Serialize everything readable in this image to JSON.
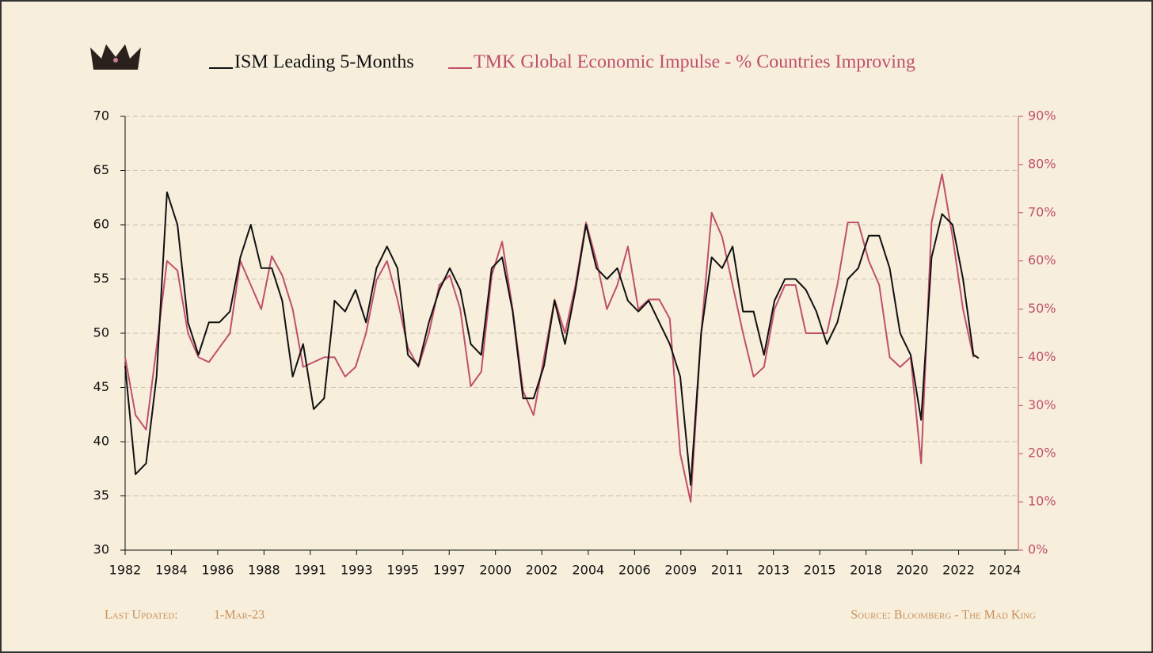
{
  "chart_data": {
    "type": "line",
    "series": [
      {
        "name": "ISM Leading 5-Months",
        "color": "#111111",
        "values": [
          47,
          37,
          38,
          46,
          63,
          60,
          51,
          48,
          51,
          51,
          52,
          57,
          60,
          56,
          56,
          53,
          46,
          49,
          43,
          44,
          53,
          52,
          54,
          51,
          56,
          58,
          56,
          48,
          47,
          51,
          54,
          56,
          54,
          49,
          48,
          56,
          57,
          52,
          44,
          44,
          47,
          53,
          49,
          54,
          60,
          56,
          55,
          56,
          53,
          52,
          53,
          51,
          49,
          46,
          36,
          50,
          57,
          56,
          58,
          52,
          52,
          48,
          53,
          55,
          55,
          54,
          52,
          49,
          51,
          55,
          56,
          59,
          59,
          56,
          50,
          48,
          42,
          57,
          61,
          60,
          55,
          48,
          47.7
        ]
      },
      {
        "name": "TMK Global Economic Impulse - % Countries Improving",
        "color": "#c0506a",
        "axis": "y2",
        "values": [
          40,
          28,
          25,
          42,
          60,
          58,
          45,
          40,
          39,
          42,
          45,
          60,
          55,
          50,
          61,
          57,
          50,
          38,
          39,
          40,
          40,
          36,
          38,
          45,
          56,
          60,
          52,
          42,
          38,
          45,
          55,
          57,
          50,
          34,
          37,
          57,
          64,
          50,
          33,
          28,
          40,
          52,
          45,
          55,
          68,
          60,
          50,
          55,
          63,
          50,
          52,
          52,
          48,
          20,
          10,
          45,
          70,
          65,
          55,
          45,
          36,
          38,
          50,
          55,
          55,
          45,
          45,
          45,
          55,
          68,
          68,
          60,
          55,
          40,
          38,
          40,
          18,
          68,
          78,
          65,
          50,
          40,
          null
        ]
      }
    ],
    "x": [
      1982,
      1982.5,
      1983,
      1983.5,
      1984,
      1984.5,
      1985,
      1985.5,
      1986,
      1986.5,
      1987,
      1987.5,
      1988,
      1988.5,
      1989,
      1989.5,
      1990,
      1990.5,
      1991,
      1991.5,
      1992,
      1992.5,
      1993,
      1993.5,
      1994,
      1994.5,
      1995,
      1995.5,
      1996,
      1996.5,
      1997,
      1997.5,
      1998,
      1998.5,
      1999,
      1999.5,
      2000,
      2000.5,
      2001,
      2001.5,
      2002,
      2002.5,
      2003,
      2003.5,
      2004,
      2004.5,
      2005,
      2005.5,
      2006,
      2006.5,
      2007,
      2007.5,
      2008,
      2008.5,
      2009,
      2009.5,
      2010,
      2010.5,
      2011,
      2011.5,
      2012,
      2012.5,
      2013,
      2013.5,
      2014,
      2014.5,
      2015,
      2015.5,
      2016,
      2016.5,
      2017,
      2017.5,
      2018,
      2018.5,
      2019,
      2019.5,
      2020,
      2020.5,
      2021,
      2021.5,
      2022,
      2022.5,
      2022.75
    ],
    "xlim": [
      1982,
      2024
    ],
    "xticks": [
      {
        "value": 1982,
        "label": "1982"
      },
      {
        "value": 1984.21,
        "label": "1984"
      },
      {
        "value": 1986.42,
        "label": "1986"
      },
      {
        "value": 1988.63,
        "label": "1988"
      },
      {
        "value": 1990.84,
        "label": "1991"
      },
      {
        "value": 1993.05,
        "label": "1993"
      },
      {
        "value": 1995.26,
        "label": "1995"
      },
      {
        "value": 1997.47,
        "label": "1997"
      },
      {
        "value": 1999.68,
        "label": "2000"
      },
      {
        "value": 2001.89,
        "label": "2002"
      },
      {
        "value": 2004.11,
        "label": "2004"
      },
      {
        "value": 2006.32,
        "label": "2006"
      },
      {
        "value": 2008.53,
        "label": "2009"
      },
      {
        "value": 2010.74,
        "label": "2011"
      },
      {
        "value": 2012.95,
        "label": "2013"
      },
      {
        "value": 2015.16,
        "label": "2015"
      },
      {
        "value": 2017.37,
        "label": "2018"
      },
      {
        "value": 2019.58,
        "label": "2020"
      },
      {
        "value": 2021.79,
        "label": "2022"
      },
      {
        "value": 2024,
        "label": "2024"
      }
    ],
    "ylim": [
      30,
      70
    ],
    "yticks": [
      30,
      35,
      40,
      45,
      50,
      55,
      60,
      65,
      70
    ],
    "y2lim": [
      0,
      90
    ],
    "y2ticks": [
      {
        "value": 0,
        "label": "0%"
      },
      {
        "value": 10,
        "label": "10%"
      },
      {
        "value": 20,
        "label": "20%"
      },
      {
        "value": 30,
        "label": "30%"
      },
      {
        "value": 40,
        "label": "40%"
      },
      {
        "value": 50,
        "label": "50%"
      },
      {
        "value": 60,
        "label": "60%"
      },
      {
        "value": 70,
        "label": "70%"
      },
      {
        "value": 80,
        "label": "80%"
      },
      {
        "value": 90,
        "label": "90%"
      }
    ],
    "grid": true,
    "footer_left_label": "Last Updated:",
    "footer_left_value": "1-Mar-23",
    "footer_right": "Source: Bloomberg - The Mad King"
  }
}
